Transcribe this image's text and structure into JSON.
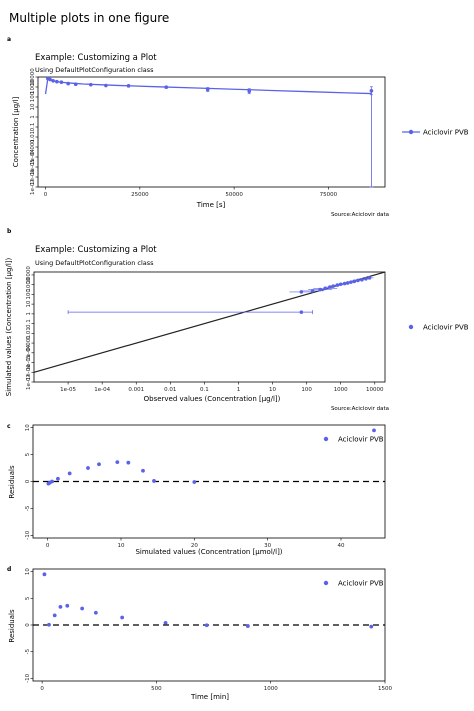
{
  "figure": {
    "title": "Multiple plots in one figure",
    "series_color": "#5a63e8",
    "identity_color": "#222222"
  },
  "chart_data": [
    {
      "panel": "a",
      "type": "line",
      "title": "Example: Customizing a Plot",
      "subtitle": "Using DefaultPlotConfiguration   class",
      "xlabel": "Time [s]",
      "ylabel": "Concentration [µg/l]",
      "caption": "Source:Aciclovir data",
      "legend": "Aciclovir PVB",
      "legend_position": "right",
      "xlim": [
        -2000,
        90000
      ],
      "ylim_log10": [
        -7,
        4
      ],
      "ylog": true,
      "xticks": [
        0,
        25000,
        50000,
        75000
      ],
      "xtick_labels": [
        "0",
        "25000",
        "50000",
        "75000"
      ],
      "yticks": [
        1e-07,
        1e-06,
        1e-05,
        0.0001,
        0.001,
        0.01,
        0.1,
        1,
        10,
        100,
        1000,
        10000
      ],
      "ytick_labels": [
        "1e-07",
        "1e-06",
        "1e-05",
        "1e-04",
        "0.001",
        "0.01",
        "0.1",
        "1",
        "10",
        "100",
        "1000",
        "10000"
      ],
      "line": {
        "x": [
          0,
          600,
          1200,
          2000,
          4000,
          7000,
          10000,
          15000,
          20000,
          30000,
          40000,
          50000,
          60000,
          70000,
          80000,
          86400
        ],
        "y": [
          200,
          7000,
          5600,
          4200,
          3000,
          2400,
          2000,
          1650,
          1400,
          1050,
          800,
          600,
          450,
          340,
          260,
          220
        ]
      },
      "points": {
        "x": [
          600,
          1200,
          2000,
          3000,
          4200,
          6000,
          8000,
          12000,
          16000,
          22000,
          32000,
          43000,
          54000,
          86400
        ],
        "y": [
          7000,
          5600,
          4200,
          3400,
          3000,
          2200,
          1900,
          1700,
          1400,
          1300,
          950,
          560,
          380,
          420
        ],
        "err": [
          0.05,
          0.05,
          0.05,
          0.05,
          0.05,
          0.05,
          0.05,
          0.05,
          0.05,
          0.1,
          0.1,
          0.2,
          0.25,
          0.4
        ]
      },
      "long_error_bar": {
        "x": 86400,
        "y_low": 1e-07,
        "y_high": 420
      }
    },
    {
      "panel": "b",
      "type": "scatter",
      "title": "Example: Customizing a Plot",
      "subtitle": "Using DefaultPlotConfiguration   class",
      "xlabel": "Observed values (Concentration [µg/l])",
      "ylabel": "Simulated values (Concentration [µg/l])",
      "caption": "Source:Aciclovir data",
      "legend": "Aciclovir PVB",
      "legend_position": "right",
      "xlog": true,
      "ylog": true,
      "xlim_log10": [
        -6,
        4.3
      ],
      "ylim_log10": [
        -7,
        4.3
      ],
      "xticks": [
        1e-05,
        0.0001,
        0.001,
        0.01,
        0.1,
        1,
        10,
        100,
        1000,
        10000
      ],
      "xtick_labels": [
        "1e-05",
        "1e-04",
        "0.001",
        "0.01",
        "0.1",
        "1",
        "10",
        "100",
        "1000",
        "10000"
      ],
      "yticks": [
        1e-07,
        1e-06,
        1e-05,
        0.0001,
        0.001,
        0.01,
        0.1,
        1,
        10,
        100,
        1000,
        10000
      ],
      "ytick_labels": [
        "1e-07",
        "1e-06",
        "1e-05",
        "1e-04",
        "0.001",
        "0.01",
        "0.1",
        "1",
        "10",
        "100",
        "1000",
        "10000"
      ],
      "identity_line": true,
      "points": {
        "x": [
          70,
          150,
          250,
          350,
          480,
          600,
          800,
          1000,
          1300,
          1600,
          2000,
          2500,
          3200,
          4200,
          5500,
          7000
        ],
        "y": [
          180,
          230,
          310,
          420,
          560,
          700,
          900,
          1100,
          1300,
          1500,
          1800,
          2200,
          2700,
          3200,
          4000,
          5000
        ]
      },
      "outlier": {
        "x": 70,
        "y": 1.5,
        "x_low": 1e-05,
        "x_high": 150
      }
    },
    {
      "panel": "c",
      "type": "scatter",
      "title": "",
      "xlabel": "Simulated values (Concentration [µmol/l])",
      "ylabel": "Residuals",
      "legend": "Aciclovir PVB",
      "legend_position": "top-right",
      "xlim": [
        -2,
        46
      ],
      "ylim": [
        -10.5,
        10.5
      ],
      "xticks": [
        0,
        10,
        20,
        30,
        40
      ],
      "xtick_labels": [
        "0",
        "10",
        "20",
        "30",
        "40"
      ],
      "yticks": [
        -10,
        -5,
        0,
        5,
        10
      ],
      "ytick_labels": [
        "-10",
        "-5",
        "0",
        "5",
        "10"
      ],
      "reference_line_y": 0,
      "x": [
        0.1,
        0.3,
        0.6,
        1.4,
        3,
        5.5,
        7,
        9.5,
        11,
        13,
        14.5,
        20,
        44.5
      ],
      "y": [
        -0.4,
        -0.2,
        0,
        0.5,
        1.5,
        2.5,
        3.2,
        3.6,
        3.5,
        2,
        0.1,
        -0.1,
        9.5
      ]
    },
    {
      "panel": "d",
      "type": "scatter",
      "title": "",
      "xlabel": "Time [min]",
      "ylabel": "Residuals",
      "legend": "Aciclovir PVB",
      "legend_position": "top-right",
      "xlim": [
        -40,
        1500
      ],
      "ylim": [
        -10.5,
        10.5
      ],
      "xticks": [
        0,
        500,
        1000,
        1500
      ],
      "xtick_labels": [
        "0",
        "500",
        "1000",
        "1500"
      ],
      "yticks": [
        -10,
        -5,
        0,
        5,
        10
      ],
      "ytick_labels": [
        "-10",
        "-5",
        "0",
        "5",
        "10"
      ],
      "reference_line_y": 0,
      "x": [
        10,
        30,
        55,
        80,
        110,
        175,
        235,
        350,
        540,
        720,
        900,
        1440
      ],
      "y": [
        9.5,
        0.05,
        1.8,
        3.4,
        3.6,
        3.1,
        2.3,
        1.4,
        0.4,
        -0.05,
        -0.2,
        -0.3
      ]
    }
  ]
}
